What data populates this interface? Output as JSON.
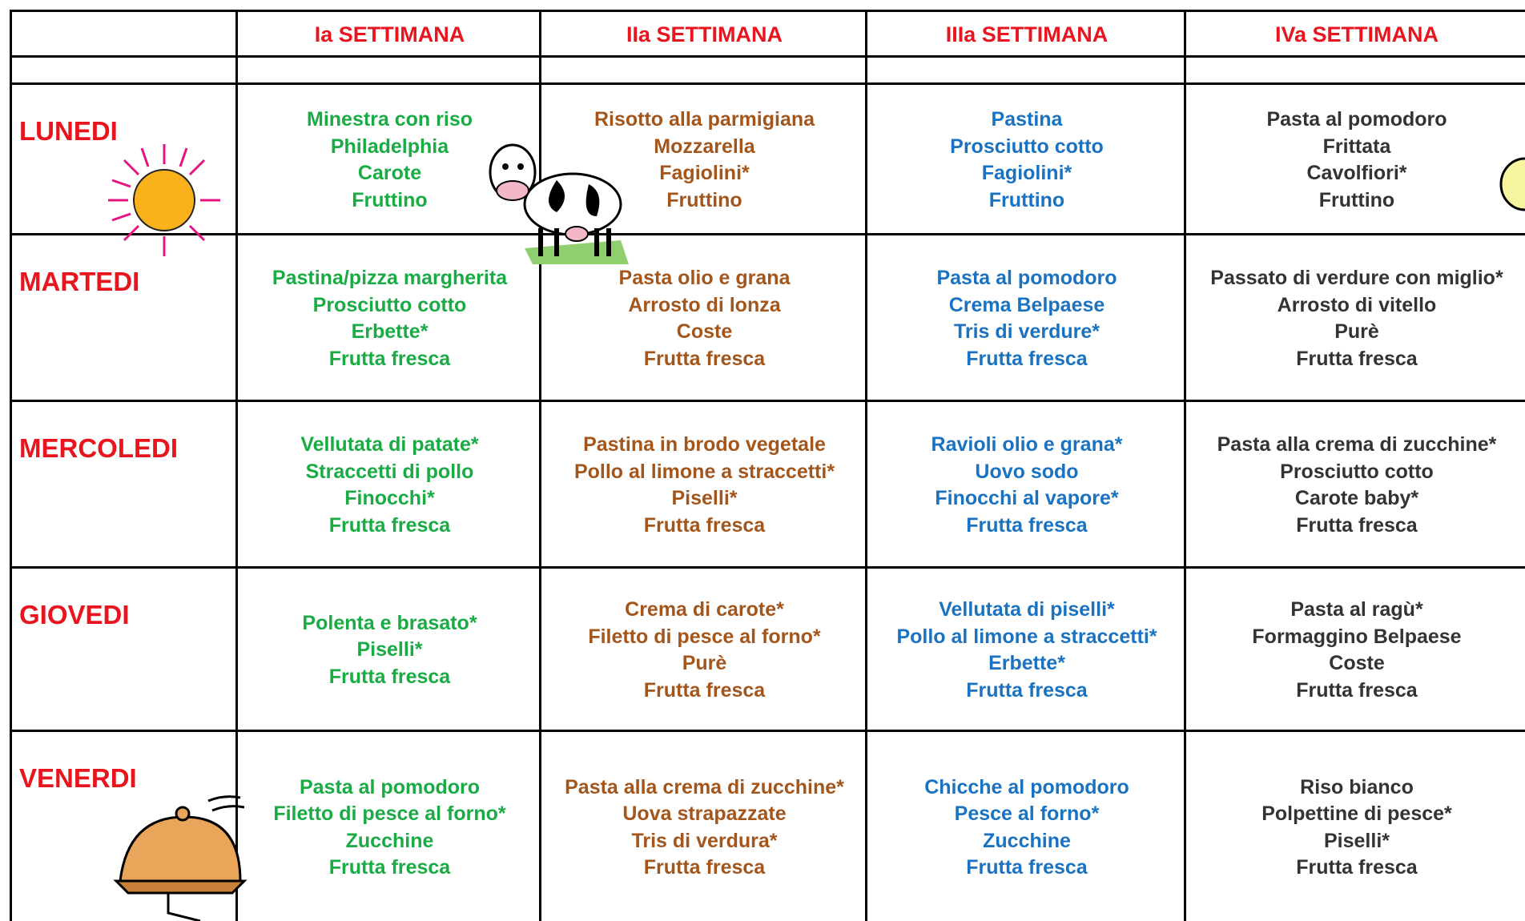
{
  "header": {
    "weeks": [
      "Ia SETTIMANA",
      "IIa SETTIMANA",
      "IIIa SETTIMANA",
      "IVa SETTIMANA"
    ]
  },
  "days": [
    {
      "name": "LUNEDI",
      "cells": [
        [
          "Minestra con riso",
          "Philadelphia",
          "Carote",
          "Fruttino"
        ],
        [
          "Risotto alla parmigiana",
          "Mozzarella",
          "Fagiolini*",
          "Fruttino"
        ],
        [
          "Pastina",
          "Prosciutto cotto",
          "Fagiolini*",
          "Fruttino"
        ],
        [
          "Pasta al pomodoro",
          "Frittata",
          "Cavolfiori*",
          "Fruttino"
        ]
      ]
    },
    {
      "name": "MARTEDI",
      "cells": [
        [
          "Pastina/pizza margherita",
          "Prosciutto cotto",
          "Erbette*",
          "Frutta fresca"
        ],
        [
          "Pasta olio e grana",
          "Arrosto di lonza",
          "Coste",
          "Frutta fresca"
        ],
        [
          "Pasta al pomodoro",
          "Crema Belpaese",
          "Tris di verdure*",
          "Frutta fresca"
        ],
        [
          "Passato di verdure con miglio*",
          "Arrosto di vitello",
          "Purè",
          "Frutta fresca"
        ]
      ]
    },
    {
      "name": "MERCOLEDI",
      "cells": [
        [
          "Vellutata di patate*",
          "Straccetti di pollo",
          "Finocchi*",
          "Frutta fresca"
        ],
        [
          "Pastina in brodo vegetale",
          "Pollo al limone a straccetti*",
          "Piselli*",
          "Frutta fresca"
        ],
        [
          "Ravioli olio e grana*",
          "Uovo sodo",
          "Finocchi al vapore*",
          "Frutta fresca"
        ],
        [
          "Pasta alla crema di zucchine*",
          "Prosciutto cotto",
          "Carote baby*",
          "Frutta fresca"
        ]
      ]
    },
    {
      "name": "GIOVEDI",
      "cells": [
        [
          "Polenta e brasato*",
          "Piselli*",
          "Frutta fresca"
        ],
        [
          "Crema di carote*",
          "Filetto di pesce al forno*",
          "Purè",
          "Frutta fresca"
        ],
        [
          "Vellutata di piselli*",
          "Pollo al limone a straccetti*",
          "Erbette*",
          "Frutta fresca"
        ],
        [
          "Pasta al ragù*",
          "Formaggino Belpaese",
          "Coste",
          "Frutta fresca"
        ]
      ]
    },
    {
      "name": "VENERDI",
      "cells": [
        [
          "Pasta al pomodoro",
          "Filetto di pesce al forno*",
          "Zucchine",
          "Frutta fresca"
        ],
        [
          "Pasta alla crema di zucchine*",
          "Uova strapazzate",
          "Tris di verdura*",
          "Frutta fresca"
        ],
        [
          "Chicche al pomodoro",
          "Pesce al forno*",
          "Zucchine",
          "Frutta fresca"
        ],
        [
          "Riso bianco",
          "Polpettine di pesce*",
          "Piselli*",
          "Frutta fresca"
        ]
      ]
    }
  ]
}
